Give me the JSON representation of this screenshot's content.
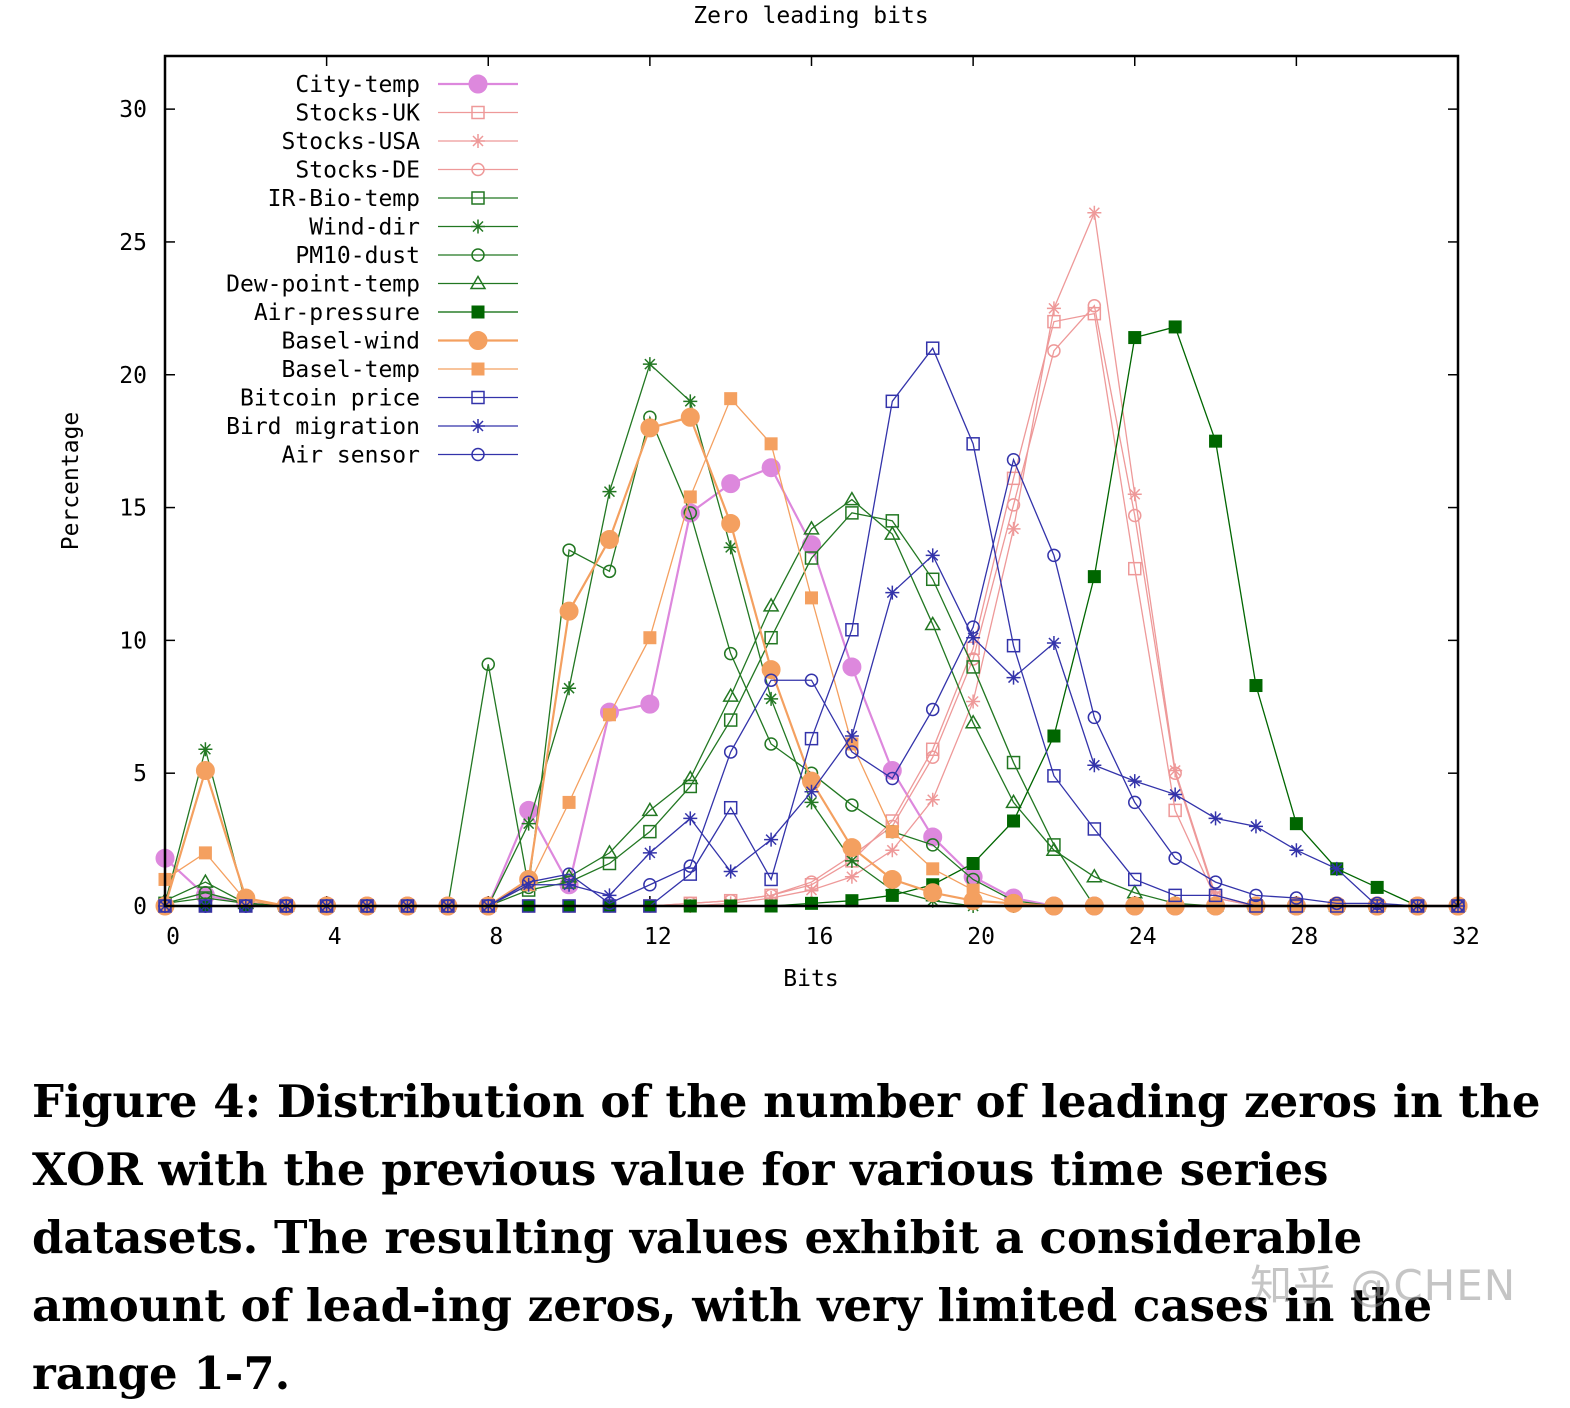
{
  "chart_data": {
    "type": "line",
    "title": "Zero leading bits",
    "xlabel": "Bits",
    "ylabel": "Percentage",
    "xlim": [
      0,
      32
    ],
    "ylim": [
      0,
      32
    ],
    "xticks": [
      0,
      4,
      8,
      12,
      16,
      20,
      24,
      28,
      32
    ],
    "yticks": [
      0,
      5,
      10,
      15,
      20,
      25,
      30
    ],
    "legend_position": "top-left",
    "series": [
      {
        "name": "City-temp",
        "color": "#dd88dd",
        "marker": "circle-filled-large",
        "x": [
          0,
          1,
          2,
          3,
          4,
          5,
          6,
          7,
          8,
          9,
          10,
          11,
          12,
          13,
          14,
          15,
          16,
          17,
          18,
          19,
          20,
          21,
          22,
          23,
          24,
          25,
          26,
          27,
          28,
          29,
          30,
          31,
          32
        ],
        "y": [
          1.8,
          0.4,
          0.1,
          0,
          0,
          0,
          0,
          0,
          0,
          3.6,
          0.8,
          7.3,
          7.6,
          14.8,
          15.9,
          16.5,
          13.6,
          9.0,
          5.1,
          2.6,
          1.1,
          0.3,
          0,
          0,
          0,
          0,
          0,
          0,
          0,
          0,
          0,
          0,
          0
        ]
      },
      {
        "name": "Stocks-UK",
        "color": "#ee9999",
        "marker": "square-open",
        "x": [
          0,
          1,
          2,
          3,
          4,
          5,
          6,
          7,
          8,
          9,
          10,
          11,
          12,
          13,
          14,
          15,
          16,
          17,
          18,
          19,
          20,
          21,
          22,
          23,
          24,
          25,
          26,
          27,
          28,
          29,
          30,
          31,
          32
        ],
        "y": [
          0,
          0,
          0,
          0,
          0,
          0,
          0,
          0,
          0,
          0,
          0,
          0,
          0,
          0.1,
          0.2,
          0.4,
          0.8,
          1.7,
          3.2,
          5.9,
          9.7,
          16.1,
          22.0,
          22.3,
          12.7,
          3.6,
          0.3,
          0,
          0,
          0,
          0,
          0,
          0
        ]
      },
      {
        "name": "Stocks-USA",
        "color": "#ee9999",
        "marker": "asterisk",
        "x": [
          0,
          1,
          2,
          3,
          4,
          5,
          6,
          7,
          8,
          9,
          10,
          11,
          12,
          13,
          14,
          15,
          16,
          17,
          18,
          19,
          20,
          21,
          22,
          23,
          24,
          25,
          26,
          27,
          28,
          29,
          30,
          31,
          32
        ],
        "y": [
          0,
          0,
          0,
          0,
          0,
          0,
          0,
          0,
          0,
          0,
          0,
          0,
          0,
          0,
          0.1,
          0.3,
          0.6,
          1.1,
          2.1,
          4.0,
          7.7,
          14.2,
          22.5,
          26.1,
          15.5,
          5.1,
          0.4,
          0,
          0,
          0,
          0,
          0,
          0
        ]
      },
      {
        "name": "Stocks-DE",
        "color": "#ee9999",
        "marker": "circle-open",
        "x": [
          0,
          1,
          2,
          3,
          4,
          5,
          6,
          7,
          8,
          9,
          10,
          11,
          12,
          13,
          14,
          15,
          16,
          17,
          18,
          19,
          20,
          21,
          22,
          23,
          24,
          25,
          26,
          27,
          28,
          29,
          30,
          31,
          32
        ],
        "y": [
          0,
          0,
          0,
          0,
          0,
          0,
          0,
          0,
          0,
          0,
          0,
          0,
          0,
          0.1,
          0.2,
          0.4,
          0.9,
          1.9,
          3.0,
          5.6,
          9.3,
          15.1,
          20.9,
          22.6,
          14.7,
          5.0,
          0.3,
          0,
          0,
          0,
          0,
          0,
          0
        ]
      },
      {
        "name": "IR-Bio-temp",
        "color": "#227722",
        "marker": "square-open",
        "x": [
          0,
          1,
          2,
          3,
          4,
          5,
          6,
          7,
          8,
          9,
          10,
          11,
          12,
          13,
          14,
          15,
          16,
          17,
          18,
          19,
          20,
          21,
          22,
          23,
          24,
          25,
          26,
          27,
          28,
          29,
          30,
          31,
          32
        ],
        "y": [
          0.1,
          0.3,
          0.1,
          0,
          0,
          0,
          0,
          0,
          0,
          0.6,
          0.9,
          1.6,
          2.8,
          4.5,
          7.0,
          10.1,
          13.1,
          14.8,
          14.5,
          12.3,
          9.0,
          5.4,
          2.3,
          0,
          0,
          0,
          0,
          0,
          0,
          0,
          0,
          0,
          0
        ]
      },
      {
        "name": "Wind-dir",
        "color": "#227722",
        "marker": "asterisk",
        "x": [
          0,
          1,
          2,
          3,
          4,
          5,
          6,
          7,
          8,
          9,
          10,
          11,
          12,
          13,
          14,
          15,
          16,
          17,
          18,
          19,
          20,
          21,
          22,
          23,
          24,
          25,
          26,
          27,
          28,
          29,
          30,
          31,
          32
        ],
        "y": [
          0.1,
          5.9,
          0.1,
          0,
          0,
          0,
          0,
          0,
          0,
          3.1,
          8.2,
          15.6,
          20.4,
          19.0,
          13.5,
          7.8,
          3.9,
          1.7,
          0.6,
          0.2,
          0,
          0,
          0,
          0,
          0,
          0,
          0,
          0,
          0,
          0,
          0,
          0,
          0
        ]
      },
      {
        "name": "PM10-dust",
        "color": "#227722",
        "marker": "circle-open",
        "x": [
          0,
          1,
          2,
          3,
          4,
          5,
          6,
          7,
          8,
          9,
          10,
          11,
          12,
          13,
          14,
          15,
          16,
          17,
          18,
          19,
          20,
          21,
          22,
          23,
          24,
          25,
          26,
          27,
          28,
          29,
          30,
          31,
          32
        ],
        "y": [
          0.1,
          0.5,
          0.1,
          0,
          0,
          0,
          0,
          0,
          9.1,
          0.7,
          13.4,
          12.6,
          18.4,
          14.8,
          9.5,
          6.1,
          5.0,
          3.8,
          2.8,
          2.3,
          1.0,
          0.2,
          0,
          0,
          0,
          0,
          0,
          0,
          0,
          0,
          0,
          0,
          0
        ]
      },
      {
        "name": "Dew-point-temp",
        "color": "#227722",
        "marker": "triangle-open",
        "x": [
          0,
          1,
          2,
          3,
          4,
          5,
          6,
          7,
          8,
          9,
          10,
          11,
          12,
          13,
          14,
          15,
          16,
          17,
          18,
          19,
          20,
          21,
          22,
          23,
          24,
          25,
          26,
          27,
          28,
          29,
          30,
          31,
          32
        ],
        "y": [
          0.2,
          0.9,
          0.1,
          0,
          0,
          0,
          0,
          0,
          0,
          0.8,
          1.1,
          2.0,
          3.6,
          4.8,
          7.9,
          11.3,
          14.2,
          15.3,
          14.0,
          10.6,
          6.9,
          3.9,
          2.1,
          1.1,
          0.5,
          0.1,
          0,
          0,
          0,
          0,
          0,
          0,
          0
        ]
      },
      {
        "name": "Air-pressure",
        "color": "#006600",
        "marker": "square-filled",
        "x": [
          0,
          1,
          2,
          3,
          4,
          5,
          6,
          7,
          8,
          9,
          10,
          11,
          12,
          13,
          14,
          15,
          16,
          17,
          18,
          19,
          20,
          21,
          22,
          23,
          24,
          25,
          26,
          27,
          28,
          29,
          30,
          31,
          32
        ],
        "y": [
          0,
          0,
          0,
          0,
          0,
          0,
          0,
          0,
          0,
          0,
          0,
          0,
          0,
          0,
          0,
          0,
          0.1,
          0.2,
          0.4,
          0.8,
          1.6,
          3.2,
          6.4,
          12.4,
          21.4,
          21.8,
          17.5,
          8.3,
          3.1,
          1.4,
          0.7,
          0,
          0
        ]
      },
      {
        "name": "Basel-wind",
        "color": "#f4a060",
        "marker": "circle-filled-large",
        "x": [
          0,
          1,
          2,
          3,
          4,
          5,
          6,
          7,
          8,
          9,
          10,
          11,
          12,
          13,
          14,
          15,
          16,
          17,
          18,
          19,
          20,
          21,
          22,
          23,
          24,
          25,
          26,
          27,
          28,
          29,
          30,
          31,
          32
        ],
        "y": [
          0,
          5.1,
          0.3,
          0,
          0,
          0,
          0,
          0,
          0,
          1.0,
          11.1,
          13.8,
          18.0,
          18.4,
          14.4,
          8.9,
          4.7,
          2.2,
          1.0,
          0.5,
          0.2,
          0.1,
          0,
          0,
          0,
          0,
          0,
          0,
          0,
          0,
          0,
          0,
          0
        ]
      },
      {
        "name": "Basel-temp",
        "color": "#f4a060",
        "marker": "square-filled",
        "x": [
          0,
          1,
          2,
          3,
          4,
          5,
          6,
          7,
          8,
          9,
          10,
          11,
          12,
          13,
          14,
          15,
          16,
          17,
          18,
          19,
          20,
          21,
          22,
          23,
          24,
          25,
          26,
          27,
          28,
          29,
          30,
          31,
          32
        ],
        "y": [
          1.0,
          2.0,
          0.2,
          0,
          0,
          0,
          0,
          0,
          0,
          0.8,
          3.9,
          7.2,
          10.1,
          15.4,
          19.1,
          17.4,
          11.6,
          6.1,
          2.8,
          1.4,
          0.6,
          0.1,
          0,
          0,
          0,
          0,
          0,
          0,
          0,
          0,
          0,
          0,
          0
        ]
      },
      {
        "name": "Bitcoin price",
        "color": "#3333aa",
        "marker": "square-open",
        "x": [
          0,
          1,
          2,
          3,
          4,
          5,
          6,
          7,
          8,
          9,
          10,
          11,
          12,
          13,
          14,
          15,
          16,
          17,
          18,
          19,
          20,
          21,
          22,
          23,
          24,
          25,
          26,
          27,
          28,
          29,
          30,
          31,
          32
        ],
        "y": [
          0,
          0,
          0,
          0,
          0,
          0,
          0,
          0,
          0,
          0,
          0,
          0,
          0,
          1.2,
          3.7,
          1.0,
          6.3,
          10.4,
          19.0,
          21.0,
          17.4,
          9.8,
          4.9,
          2.9,
          1.0,
          0.4,
          0.4,
          0,
          0,
          0,
          0,
          0,
          0
        ]
      },
      {
        "name": "Bird migration",
        "color": "#3333aa",
        "marker": "asterisk",
        "x": [
          0,
          1,
          2,
          3,
          4,
          5,
          6,
          7,
          8,
          9,
          10,
          11,
          12,
          13,
          14,
          15,
          16,
          17,
          18,
          19,
          20,
          21,
          22,
          23,
          24,
          25,
          26,
          27,
          28,
          29,
          30,
          31,
          32
        ],
        "y": [
          0,
          0,
          0,
          0,
          0,
          0,
          0,
          0,
          0,
          0.8,
          0.8,
          0.4,
          2.0,
          3.3,
          1.3,
          2.5,
          4.3,
          6.4,
          11.8,
          13.2,
          10.1,
          8.6,
          9.9,
          5.3,
          4.7,
          4.2,
          3.3,
          3.0,
          2.1,
          1.4,
          0,
          0,
          0
        ]
      },
      {
        "name": "Air sensor",
        "color": "#3333aa",
        "marker": "circle-open",
        "x": [
          0,
          1,
          2,
          3,
          4,
          5,
          6,
          7,
          8,
          9,
          10,
          11,
          12,
          13,
          14,
          15,
          16,
          17,
          18,
          19,
          20,
          21,
          22,
          23,
          24,
          25,
          26,
          27,
          28,
          29,
          30,
          31,
          32
        ],
        "y": [
          0,
          0,
          0,
          0,
          0,
          0,
          0,
          0,
          0,
          0.9,
          1.2,
          0.1,
          0.8,
          1.5,
          5.8,
          8.5,
          8.5,
          5.8,
          4.8,
          7.4,
          10.5,
          16.8,
          13.2,
          7.1,
          3.9,
          1.8,
          0.9,
          0.4,
          0.3,
          0.1,
          0.1,
          0,
          0
        ]
      }
    ]
  },
  "caption": "Figure 4: Distribution of the number of leading zeros in the XOR with the previous value for various time series datasets. The resulting values exhibit a considerable amount of lead-ing zeros, with very limited cases in the range 1-7.",
  "watermark": "知乎 @CHEN"
}
